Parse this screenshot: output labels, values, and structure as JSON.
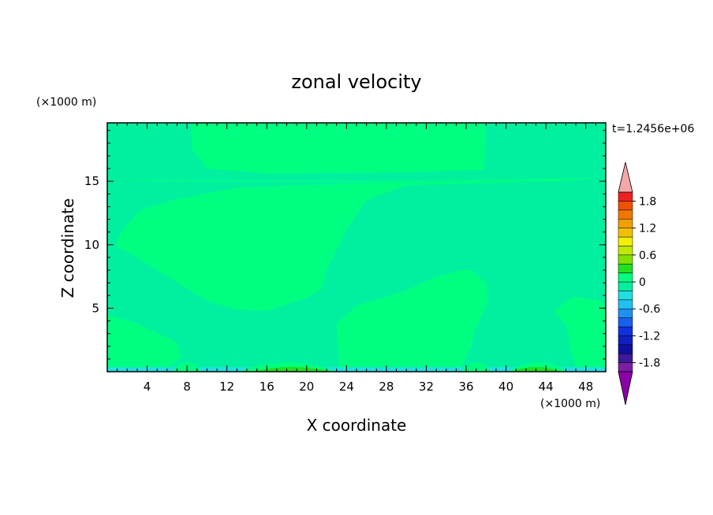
{
  "chart_data": {
    "type": "heatmap",
    "title": "zonal velocity",
    "xlabel": "X coordinate",
    "ylabel": "Z coordinate",
    "x_unit": "(×1000 m)",
    "y_unit": "(×1000 m)",
    "time_label": "t=1.2456e+06",
    "xlim": [
      0,
      50
    ],
    "ylim": [
      0,
      19.6
    ],
    "xticks": [
      4,
      8,
      12,
      16,
      20,
      24,
      28,
      32,
      36,
      40,
      44,
      48
    ],
    "yticks": [
      5,
      10,
      15
    ],
    "colorbar": {
      "levels": [
        -2.0,
        -1.8,
        -1.6,
        -1.4,
        -1.2,
        -1.0,
        -0.8,
        -0.6,
        -0.4,
        -0.2,
        0,
        0.2,
        0.4,
        0.6,
        0.8,
        1.0,
        1.2,
        1.4,
        1.6,
        1.8,
        2.0
      ],
      "colors": [
        "#7a1fa2",
        "#3c1a9a",
        "#1010a0",
        "#1020c0",
        "#1030e0",
        "#1860f0",
        "#2090f0",
        "#20c0f0",
        "#20e0e0",
        "#00f0a0",
        "#00ff80",
        "#20e020",
        "#80e000",
        "#c0e800",
        "#f0f000",
        "#f0c000",
        "#f0a000",
        "#f07800",
        "#f05000",
        "#f02020"
      ],
      "under_color": "#8b00a8",
      "over_color": "#f4a7a7",
      "tick_labels": [
        "1.8",
        "1.2",
        "0.6",
        "0",
        "-0.6",
        "-1.2",
        "-1.8"
      ],
      "tick_values": [
        1.8,
        1.2,
        0.6,
        0,
        -0.6,
        -1.2,
        -1.8
      ]
    },
    "fields": {
      "background_level": "-0.2 to 0",
      "regions_0_to_0.2": [
        [
          [
            8.5,
            19.6
          ],
          [
            8.5,
            17.5
          ],
          [
            10,
            16.0
          ],
          [
            16,
            15.6
          ],
          [
            30,
            15.7
          ],
          [
            37.8,
            15.9
          ],
          [
            38,
            19.6
          ]
        ],
        [
          [
            0.6,
            15.2
          ],
          [
            5,
            15.1
          ],
          [
            15,
            15.05
          ],
          [
            30,
            15.05
          ],
          [
            45,
            15.2
          ],
          [
            49.8,
            15.3
          ],
          [
            45,
            15.0
          ],
          [
            30,
            14.95
          ],
          [
            15,
            14.95
          ],
          [
            5,
            15.0
          ]
        ],
        [
          [
            1,
            10.5
          ],
          [
            2.2,
            11.8
          ],
          [
            3.5,
            12.8
          ],
          [
            7,
            13.6
          ],
          [
            13,
            14.5
          ],
          [
            20,
            14.7
          ],
          [
            28,
            14.9
          ],
          [
            35,
            14.9
          ],
          [
            42,
            14.9
          ],
          [
            30,
            14.7
          ],
          [
            26,
            13.5
          ],
          [
            24,
            11.2
          ],
          [
            22,
            8.0
          ],
          [
            21.5,
            6.5
          ],
          [
            20,
            5.8
          ],
          [
            16,
            4.8
          ],
          [
            13,
            4.9
          ],
          [
            10,
            5.6
          ],
          [
            6,
            7.5
          ],
          [
            3,
            9.0
          ],
          [
            1,
            9.8
          ]
        ],
        [
          [
            0,
            4.5
          ],
          [
            3,
            3.8
          ],
          [
            7,
            2.3
          ],
          [
            7.4,
            1.2
          ],
          [
            6.2,
            0.3
          ],
          [
            0,
            0.3
          ]
        ],
        [
          [
            23.3,
            0.3
          ],
          [
            23.0,
            3.8
          ],
          [
            25,
            5.2
          ],
          [
            30,
            6.4
          ],
          [
            33,
            7.5
          ],
          [
            36.3,
            8.1
          ],
          [
            38,
            7.0
          ],
          [
            38.2,
            5.5
          ],
          [
            37,
            3.5
          ],
          [
            36.5,
            2.0
          ],
          [
            35.5,
            0.3
          ]
        ],
        [
          [
            44.8,
            4.8
          ],
          [
            46.8,
            5.9
          ],
          [
            49.5,
            5.6
          ],
          [
            50,
            5.0
          ],
          [
            50,
            0.3
          ],
          [
            47,
            0.3
          ],
          [
            46.4,
            2.0
          ],
          [
            46.1,
            3.5
          ]
        ]
      ]
    }
  }
}
